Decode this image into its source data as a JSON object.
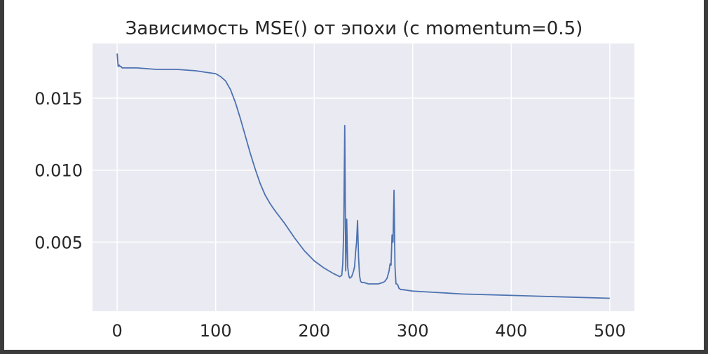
{
  "chart_data": {
    "type": "line",
    "title": "Зависимость MSE() от эпохи (с momentum=0.5)",
    "xlabel": "",
    "ylabel": "",
    "xlim": [
      -25,
      525
    ],
    "ylim": [
      0.0002,
      0.0188
    ],
    "xticks": [
      0,
      100,
      200,
      300,
      400,
      500
    ],
    "xtick_labels": [
      "0",
      "100",
      "200",
      "300",
      "400",
      "500"
    ],
    "yticks": [
      0.005,
      0.01,
      0.015
    ],
    "ytick_labels": [
      "0.005",
      "0.010",
      "0.015"
    ],
    "grid": true,
    "colors": {
      "background": "#eaeaf2",
      "grid": "#ffffff",
      "line": "#4c72b0"
    },
    "series": [
      {
        "x": [
          0,
          1,
          2,
          3,
          4,
          5,
          10,
          20,
          40,
          60,
          80,
          90,
          100,
          105,
          110,
          115,
          120,
          125,
          130,
          135,
          140,
          145,
          150,
          155,
          160,
          170,
          180,
          190,
          200,
          210,
          220,
          226,
          228,
          229,
          230,
          231,
          232,
          233,
          234,
          235,
          236,
          238,
          240,
          241,
          242,
          243,
          244,
          245,
          246,
          247,
          248,
          249,
          250,
          255,
          260,
          265,
          270,
          272,
          274,
          276,
          277,
          278,
          279,
          280,
          281,
          282,
          283,
          284,
          285,
          286,
          288,
          290,
          300,
          350,
          400,
          450,
          500
        ],
        "y": [
          0.0181,
          0.0172,
          0.0173,
          0.0172,
          0.0172,
          0.0171,
          0.0171,
          0.0171,
          0.017,
          0.017,
          0.0169,
          0.0168,
          0.0167,
          0.0165,
          0.0162,
          0.0156,
          0.0147,
          0.0136,
          0.0124,
          0.0112,
          0.0101,
          0.0091,
          0.0083,
          0.0077,
          0.0072,
          0.0063,
          0.0053,
          0.0044,
          0.0037,
          0.0032,
          0.0028,
          0.0026,
          0.0027,
          0.0035,
          0.006,
          0.0131,
          0.003,
          0.0066,
          0.0033,
          0.0027,
          0.0025,
          0.0026,
          0.003,
          0.0033,
          0.0043,
          0.005,
          0.0065,
          0.004,
          0.0027,
          0.0023,
          0.0022,
          0.0022,
          0.0022,
          0.0021,
          0.0021,
          0.0021,
          0.0022,
          0.0023,
          0.0025,
          0.003,
          0.0035,
          0.0034,
          0.0055,
          0.005,
          0.0086,
          0.0033,
          0.0021,
          0.0021,
          0.002,
          0.0018,
          0.0017,
          0.0017,
          0.0016,
          0.0014,
          0.0013,
          0.0012,
          0.0011
        ]
      }
    ]
  }
}
